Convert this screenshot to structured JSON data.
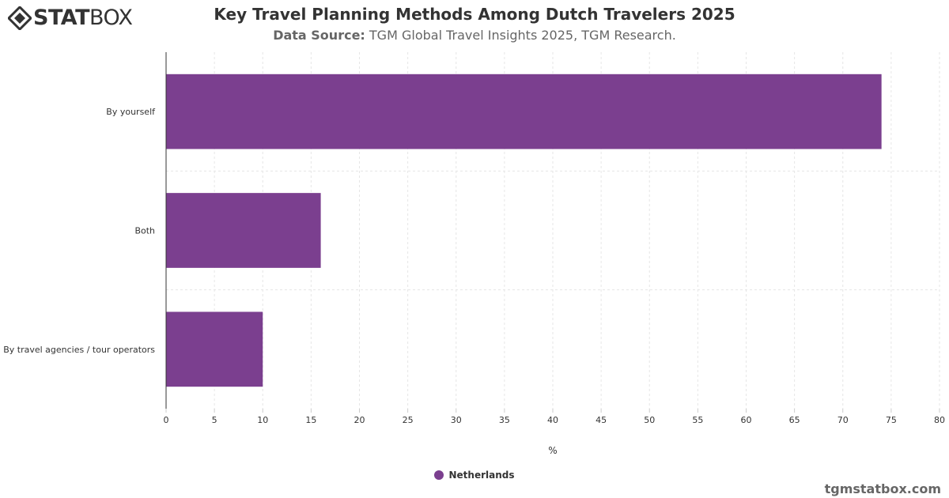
{
  "header": {
    "logo_text_bold": "STAT",
    "logo_text_light": "BOX",
    "title": "Key Travel Planning Methods Among Dutch Travelers 2025",
    "source_label": "Data Source:",
    "source_text": "TGM Global Travel Insights 2025, TGM Research."
  },
  "footer": {
    "site": "tgmstatbox.com"
  },
  "colors": {
    "bar": "#7b3f8f",
    "grid": "#e6e6e6",
    "axis": "#333333"
  },
  "chart_data": {
    "type": "bar",
    "orientation": "horizontal",
    "categories": [
      "By yourself",
      "Both",
      "By travel agencies / tour operators"
    ],
    "series": [
      {
        "name": "Netherlands",
        "values": [
          74,
          16,
          10
        ]
      }
    ],
    "xlabel": "%",
    "xlim": [
      0,
      80
    ],
    "xticks": [
      0,
      5,
      10,
      15,
      20,
      25,
      30,
      35,
      40,
      45,
      50,
      55,
      60,
      65,
      70,
      75,
      80
    ],
    "grid": true,
    "legend_position": "bottom-center"
  }
}
